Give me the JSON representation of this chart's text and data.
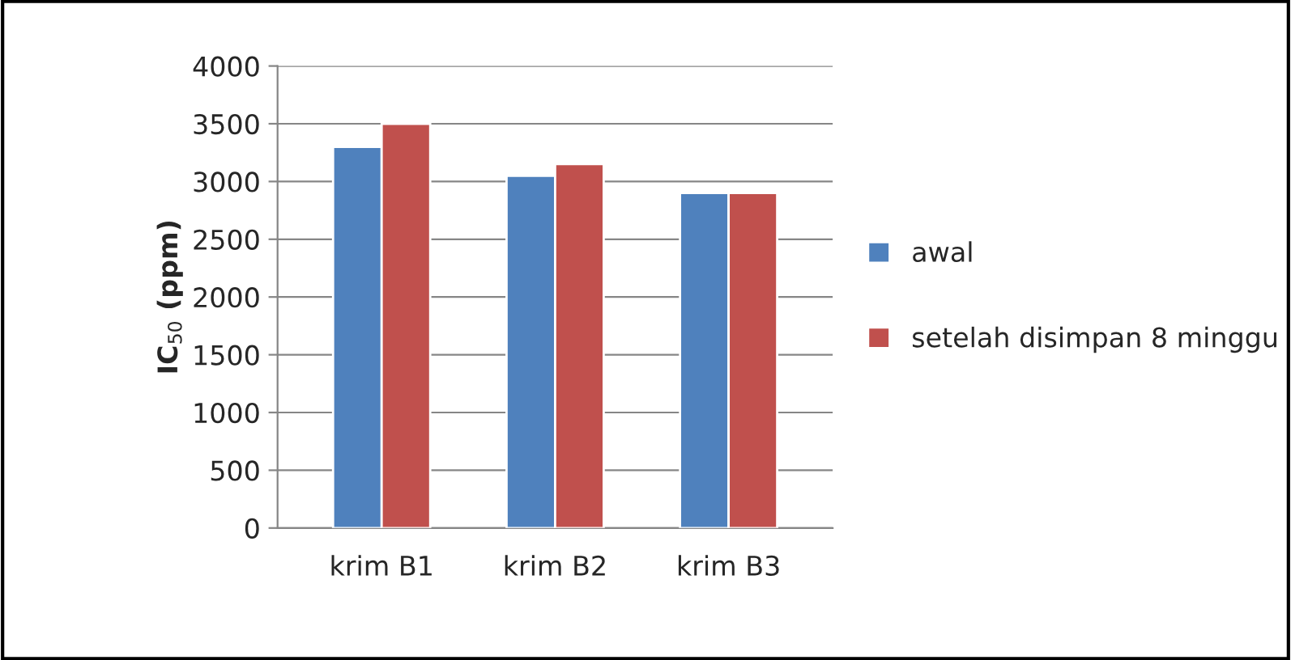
{
  "chart_data": {
    "type": "bar",
    "ylabel": "IC$_{50}$ (ppm)",
    "categories": [
      "krim B1",
      "krim B2",
      "krim B3"
    ],
    "series": [
      {
        "name": "awal",
        "color": "#4f81bd",
        "values": [
          3300,
          3050,
          2900
        ]
      },
      {
        "name": "setelah disimpan 8 minggu",
        "color": "#c0504d",
        "values": [
          3500,
          3150,
          2900
        ]
      }
    ],
    "ylim": [
      0,
      4000
    ],
    "yticks": [
      0,
      500,
      1000,
      1500,
      2000,
      2500,
      3000,
      3500,
      4000
    ],
    "grid": "y",
    "legend": "right"
  }
}
